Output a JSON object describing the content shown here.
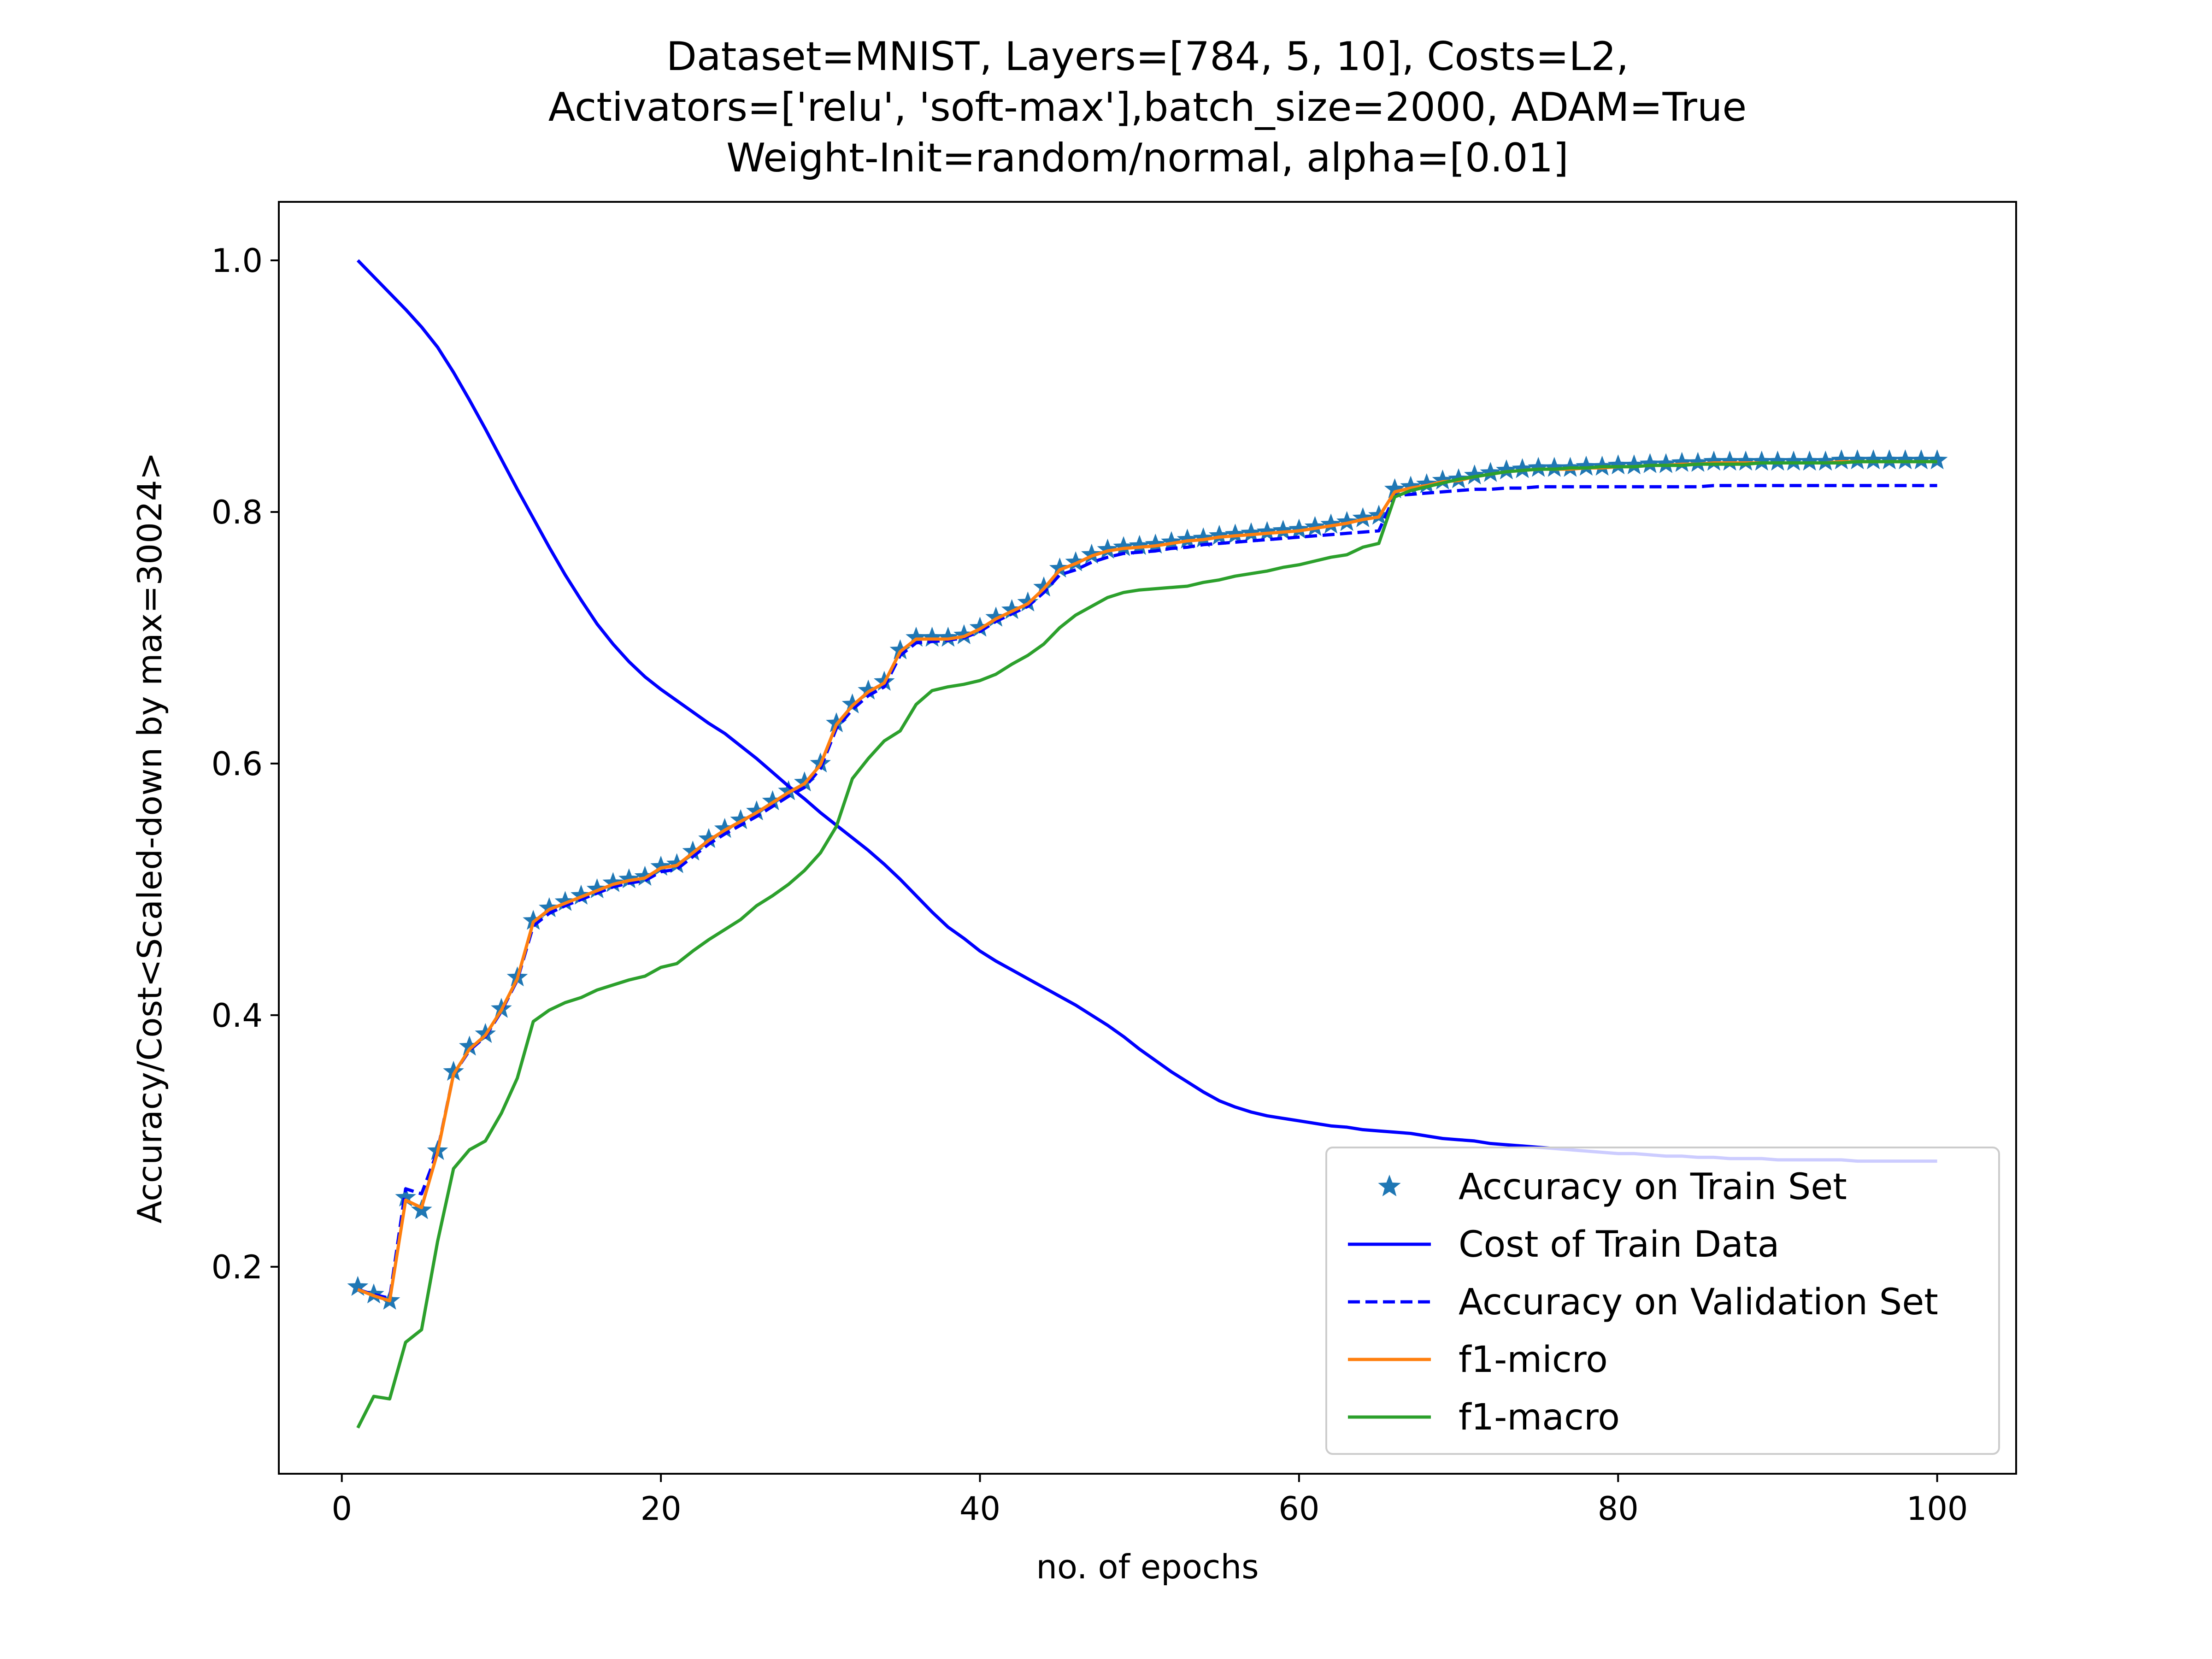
{
  "chart_data": {
    "type": "line",
    "title_lines": [
      "Dataset=MNIST, Layers=[784, 5, 10], Costs=L2,",
      "Activators=['relu', 'soft-max'],batch_size=2000, ADAM=True",
      "Weight-Init=random/normal, alpha=[0.01]"
    ],
    "xlabel": "no. of epochs",
    "ylabel": "Accuracy/Cost<Scaled-down by max=30024>",
    "xlim": [
      -3.95,
      104.95
    ],
    "ylim": [
      0.0355,
      1.0465
    ],
    "xticks": [
      0,
      20,
      40,
      60,
      80,
      100
    ],
    "yticks": [
      0.2,
      0.4,
      0.6,
      0.8,
      1.0
    ],
    "xtick_labels": [
      "0",
      "20",
      "40",
      "60",
      "80",
      "100"
    ],
    "ytick_labels": [
      "0.2",
      "0.4",
      "0.6",
      "0.8",
      "1.0"
    ],
    "legend_position": "lower right",
    "grid": false,
    "x": [
      1,
      2,
      3,
      4,
      5,
      6,
      7,
      8,
      9,
      10,
      11,
      12,
      13,
      14,
      15,
      16,
      17,
      18,
      19,
      20,
      21,
      22,
      23,
      24,
      25,
      26,
      27,
      28,
      29,
      30,
      31,
      32,
      33,
      34,
      35,
      36,
      37,
      38,
      39,
      40,
      41,
      42,
      43,
      44,
      45,
      46,
      47,
      48,
      49,
      50,
      51,
      52,
      53,
      54,
      55,
      56,
      57,
      58,
      59,
      60,
      61,
      62,
      63,
      64,
      65,
      66,
      67,
      68,
      69,
      70,
      71,
      72,
      73,
      74,
      75,
      76,
      77,
      78,
      79,
      80,
      81,
      82,
      83,
      84,
      85,
      86,
      87,
      88,
      89,
      90,
      91,
      92,
      93,
      94,
      95,
      96,
      97,
      98,
      99,
      100
    ],
    "series": [
      {
        "name": "Accuracy on Train Set",
        "style": "stars",
        "color": "#1f77b4",
        "values": [
          0.184,
          0.178,
          0.173,
          0.255,
          0.245,
          0.292,
          0.355,
          0.375,
          0.385,
          0.405,
          0.43,
          0.475,
          0.485,
          0.49,
          0.495,
          0.5,
          0.505,
          0.508,
          0.51,
          0.518,
          0.52,
          0.53,
          0.54,
          0.548,
          0.555,
          0.562,
          0.57,
          0.578,
          0.585,
          0.6,
          0.632,
          0.647,
          0.658,
          0.665,
          0.69,
          0.7,
          0.7,
          0.7,
          0.702,
          0.708,
          0.716,
          0.722,
          0.728,
          0.74,
          0.755,
          0.76,
          0.766,
          0.77,
          0.772,
          0.773,
          0.774,
          0.776,
          0.778,
          0.779,
          0.781,
          0.782,
          0.783,
          0.784,
          0.785,
          0.786,
          0.788,
          0.79,
          0.792,
          0.795,
          0.797,
          0.818,
          0.82,
          0.822,
          0.825,
          0.826,
          0.829,
          0.831,
          0.833,
          0.834,
          0.835,
          0.835,
          0.835,
          0.836,
          0.836,
          0.837,
          0.837,
          0.838,
          0.838,
          0.839,
          0.839,
          0.84,
          0.84,
          0.84,
          0.84,
          0.84,
          0.84,
          0.84,
          0.84,
          0.841,
          0.841,
          0.841,
          0.841,
          0.841,
          0.841,
          0.841
        ]
      },
      {
        "name": "Cost of Train Data",
        "style": "solid",
        "color": "#0000ff",
        "values": [
          1.0,
          0.987,
          0.974,
          0.961,
          0.947,
          0.931,
          0.911,
          0.889,
          0.866,
          0.842,
          0.818,
          0.795,
          0.772,
          0.75,
          0.73,
          0.711,
          0.695,
          0.681,
          0.669,
          0.659,
          0.65,
          0.641,
          0.632,
          0.624,
          0.614,
          0.604,
          0.593,
          0.582,
          0.572,
          0.561,
          0.551,
          0.541,
          0.531,
          0.52,
          0.508,
          0.495,
          0.482,
          0.47,
          0.461,
          0.451,
          0.443,
          0.436,
          0.429,
          0.422,
          0.415,
          0.408,
          0.4,
          0.392,
          0.383,
          0.373,
          0.364,
          0.355,
          0.347,
          0.339,
          0.332,
          0.327,
          0.323,
          0.32,
          0.318,
          0.316,
          0.314,
          0.312,
          0.311,
          0.309,
          0.308,
          0.307,
          0.306,
          0.304,
          0.302,
          0.301,
          0.3,
          0.298,
          0.297,
          0.296,
          0.295,
          0.294,
          0.293,
          0.292,
          0.291,
          0.29,
          0.29,
          0.289,
          0.288,
          0.288,
          0.287,
          0.287,
          0.286,
          0.286,
          0.286,
          0.285,
          0.285,
          0.285,
          0.285,
          0.285,
          0.284,
          0.284,
          0.284,
          0.284,
          0.284,
          0.284
        ]
      },
      {
        "name": "Accuracy on Validation Set",
        "style": "dashed",
        "color": "#0000ff",
        "values": [
          0.182,
          0.178,
          0.175,
          0.262,
          0.258,
          0.292,
          0.353,
          0.372,
          0.383,
          0.403,
          0.428,
          0.471,
          0.481,
          0.487,
          0.492,
          0.497,
          0.502,
          0.505,
          0.507,
          0.514,
          0.516,
          0.526,
          0.536,
          0.544,
          0.551,
          0.558,
          0.566,
          0.574,
          0.581,
          0.596,
          0.628,
          0.643,
          0.654,
          0.661,
          0.686,
          0.696,
          0.697,
          0.698,
          0.7,
          0.705,
          0.713,
          0.719,
          0.725,
          0.736,
          0.75,
          0.754,
          0.76,
          0.764,
          0.767,
          0.768,
          0.769,
          0.771,
          0.772,
          0.774,
          0.775,
          0.776,
          0.777,
          0.778,
          0.779,
          0.78,
          0.781,
          0.782,
          0.783,
          0.784,
          0.785,
          0.813,
          0.814,
          0.815,
          0.816,
          0.817,
          0.818,
          0.818,
          0.819,
          0.819,
          0.82,
          0.82,
          0.82,
          0.82,
          0.82,
          0.82,
          0.82,
          0.82,
          0.82,
          0.82,
          0.82,
          0.821,
          0.821,
          0.821,
          0.821,
          0.821,
          0.821,
          0.821,
          0.821,
          0.821,
          0.821,
          0.821,
          0.821,
          0.821,
          0.821,
          0.821
        ]
      },
      {
        "name": "f1-micro",
        "style": "solid",
        "color": "#ff7f0e",
        "values": [
          0.182,
          0.177,
          0.173,
          0.253,
          0.247,
          0.291,
          0.353,
          0.373,
          0.384,
          0.404,
          0.429,
          0.474,
          0.484,
          0.489,
          0.494,
          0.499,
          0.504,
          0.507,
          0.509,
          0.517,
          0.519,
          0.529,
          0.539,
          0.547,
          0.554,
          0.561,
          0.569,
          0.577,
          0.584,
          0.599,
          0.631,
          0.646,
          0.657,
          0.664,
          0.689,
          0.699,
          0.699,
          0.699,
          0.701,
          0.707,
          0.715,
          0.721,
          0.727,
          0.739,
          0.754,
          0.759,
          0.765,
          0.769,
          0.771,
          0.772,
          0.773,
          0.775,
          0.777,
          0.778,
          0.78,
          0.781,
          0.782,
          0.783,
          0.784,
          0.785,
          0.787,
          0.789,
          0.791,
          0.794,
          0.796,
          0.816,
          0.819,
          0.821,
          0.824,
          0.825,
          0.828,
          0.83,
          0.832,
          0.833,
          0.834,
          0.834,
          0.834,
          0.835,
          0.835,
          0.836,
          0.836,
          0.837,
          0.837,
          0.838,
          0.838,
          0.839,
          0.839,
          0.839,
          0.839,
          0.839,
          0.839,
          0.839,
          0.839,
          0.84,
          0.84,
          0.84,
          0.84,
          0.84,
          0.84,
          0.84
        ]
      },
      {
        "name": "f1-macro",
        "style": "solid",
        "color": "#2ca02c",
        "values": [
          0.072,
          0.097,
          0.095,
          0.14,
          0.15,
          0.22,
          0.278,
          0.293,
          0.3,
          0.322,
          0.35,
          0.395,
          0.404,
          0.41,
          0.414,
          0.42,
          0.424,
          0.428,
          0.431,
          0.438,
          0.441,
          0.451,
          0.46,
          0.468,
          0.476,
          0.487,
          0.495,
          0.504,
          0.515,
          0.529,
          0.55,
          0.588,
          0.604,
          0.618,
          0.626,
          0.647,
          0.658,
          0.661,
          0.663,
          0.666,
          0.671,
          0.679,
          0.686,
          0.695,
          0.708,
          0.718,
          0.725,
          0.732,
          0.736,
          0.738,
          0.739,
          0.74,
          0.741,
          0.744,
          0.746,
          0.749,
          0.751,
          0.753,
          0.756,
          0.758,
          0.761,
          0.764,
          0.766,
          0.772,
          0.775,
          0.812,
          0.817,
          0.82,
          0.823,
          0.826,
          0.828,
          0.83,
          0.832,
          0.833,
          0.834,
          0.834,
          0.835,
          0.835,
          0.836,
          0.836,
          0.836,
          0.837,
          0.837,
          0.837,
          0.838,
          0.838,
          0.838,
          0.838,
          0.839,
          0.839,
          0.839,
          0.839,
          0.839,
          0.839,
          0.84,
          0.84,
          0.84,
          0.84,
          0.84,
          0.84
        ]
      }
    ]
  }
}
